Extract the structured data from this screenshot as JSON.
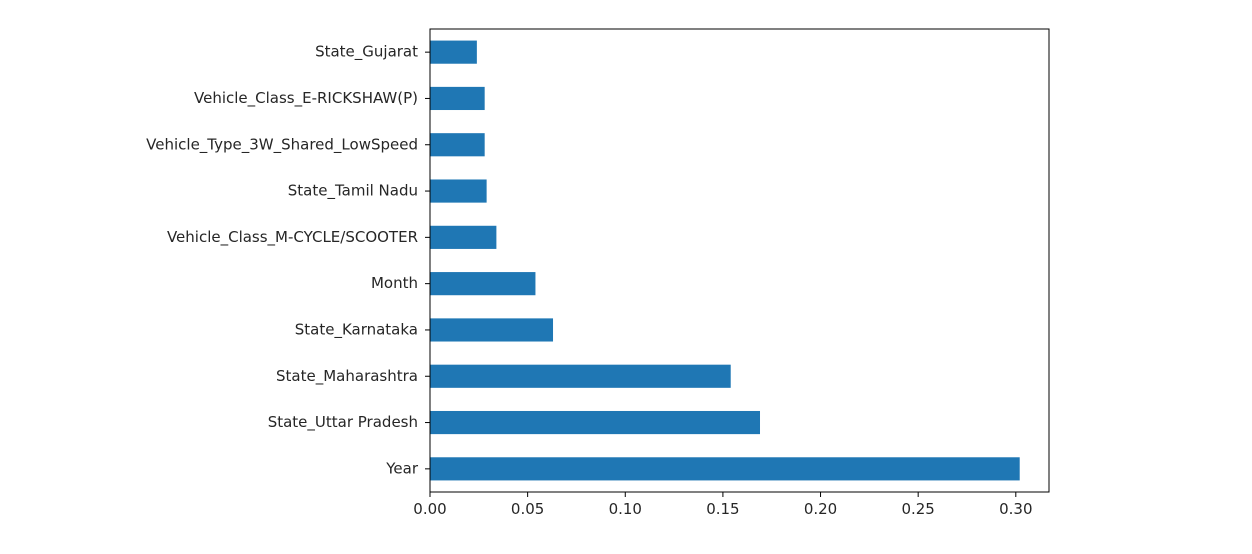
{
  "chart_data": {
    "type": "bar",
    "orientation": "horizontal",
    "title": "",
    "xlabel": "",
    "ylabel": "",
    "categories": [
      "Year",
      "State_Uttar Pradesh",
      "State_Maharashtra",
      "State_Karnataka",
      "Month",
      "Vehicle_Class_M-CYCLE/SCOOTER",
      "State_Tamil Nadu",
      "Vehicle_Type_3W_Shared_LowSpeed",
      "Vehicle_Class_E-RICKSHAW(P)",
      "State_Gujarat"
    ],
    "values": [
      0.302,
      0.169,
      0.154,
      0.063,
      0.054,
      0.034,
      0.029,
      0.028,
      0.028,
      0.024
    ],
    "xlim": [
      0,
      0.317
    ],
    "xticks": [
      0.0,
      0.05,
      0.1,
      0.15,
      0.2,
      0.25,
      0.3
    ],
    "xtick_labels": [
      "0.00",
      "0.05",
      "0.10",
      "0.15",
      "0.20",
      "0.25",
      "0.30"
    ],
    "grid": false,
    "legend": "none",
    "bar_color": "#1f77b4"
  }
}
